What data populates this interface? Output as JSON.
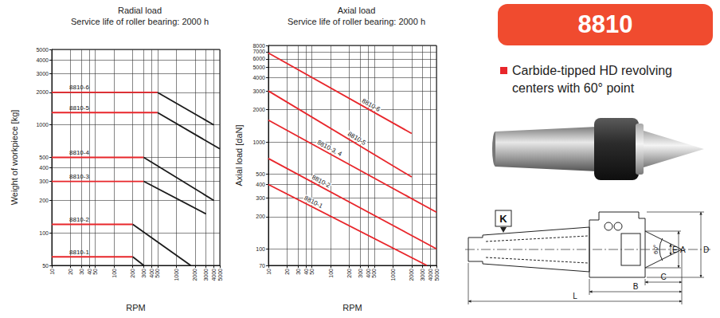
{
  "chart_data": [
    {
      "type": "line",
      "title": "Radial load",
      "subtitle": "Service life of roller bearing: 2000 h",
      "x_label": "RPM",
      "y_label": "Weight of workpiece [kg]",
      "log": true,
      "grid": true,
      "xlim": [
        10,
        5000
      ],
      "xticks": [
        10,
        20,
        30,
        40,
        50,
        100,
        200,
        300,
        400,
        500,
        1000,
        2000,
        3000,
        4000,
        5000
      ],
      "ylim": [
        50,
        5000
      ],
      "yticks": [
        50,
        100,
        200,
        300,
        400,
        500,
        1000,
        2000,
        3000,
        4000,
        5000
      ],
      "series": [
        {
          "name": "8810-6",
          "x": [
            10,
            500,
            4000
          ],
          "values": [
            2000,
            2000,
            1000
          ],
          "colors": [
            "#e8262b",
            "#1a1a1a"
          ]
        },
        {
          "name": "8810-5",
          "x": [
            10,
            500,
            5000
          ],
          "values": [
            1300,
            1300,
            600
          ],
          "colors": [
            "#e8262b",
            "#1a1a1a"
          ]
        },
        {
          "name": "8810-4",
          "x": [
            10,
            300,
            4000
          ],
          "values": [
            500,
            500,
            200
          ],
          "colors": [
            "#e8262b",
            "#1a1a1a"
          ]
        },
        {
          "name": "8810-3",
          "x": [
            10,
            300,
            3000
          ],
          "values": [
            300,
            300,
            150
          ],
          "colors": [
            "#e8262b",
            "#1a1a1a"
          ]
        },
        {
          "name": "8810-2",
          "x": [
            10,
            200,
            1700
          ],
          "values": [
            120,
            120,
            50
          ],
          "colors": [
            "#e8262b",
            "#1a1a1a"
          ]
        },
        {
          "name": "8810-1",
          "x": [
            10,
            200,
            300
          ],
          "values": [
            60,
            60,
            50
          ],
          "colors": [
            "#e8262b",
            "#1a1a1a"
          ]
        }
      ]
    },
    {
      "type": "line",
      "title": "Axial load",
      "subtitle": "Service life of roller bearing: 2000 h",
      "x_label": "RPM",
      "y_label": "Axial load [daN]",
      "log": true,
      "grid": true,
      "xlim": [
        10,
        5000
      ],
      "xticks": [
        10,
        20,
        30,
        40,
        50,
        100,
        200,
        300,
        400,
        500,
        1000,
        2000,
        3000,
        4000,
        5000
      ],
      "ylim": [
        70,
        8000
      ],
      "yticks": [
        70,
        100,
        200,
        300,
        400,
        500,
        1000,
        2000,
        3000,
        4000,
        5000,
        6000,
        7000,
        8000
      ],
      "series": [
        {
          "name": "8810-6",
          "x": [
            10,
            2000
          ],
          "values": [
            6800,
            1200
          ],
          "color": "#e8262b"
        },
        {
          "name": "8810-5",
          "x": [
            10,
            2000
          ],
          "values": [
            3000,
            470
          ],
          "color": "#e8262b"
        },
        {
          "name": "8810-3, 4",
          "x": [
            10,
            5000
          ],
          "values": [
            1600,
            220
          ],
          "color": "#e8262b"
        },
        {
          "name": "8810-2",
          "x": [
            10,
            5000
          ],
          "values": [
            700,
            100
          ],
          "color": "#e8262b"
        },
        {
          "name": "8810-1",
          "x": [
            10,
            3500
          ],
          "values": [
            400,
            70
          ],
          "color": "#e8262b"
        }
      ]
    }
  ],
  "product": {
    "title": "8810",
    "description": "Carbide-tipped HD revolving centers with 60° point"
  },
  "drawing": {
    "callout": "K",
    "angle": "60°",
    "diameters": [
      "E",
      "A",
      "D"
    ],
    "lengths": [
      "C",
      "B",
      "L"
    ]
  }
}
